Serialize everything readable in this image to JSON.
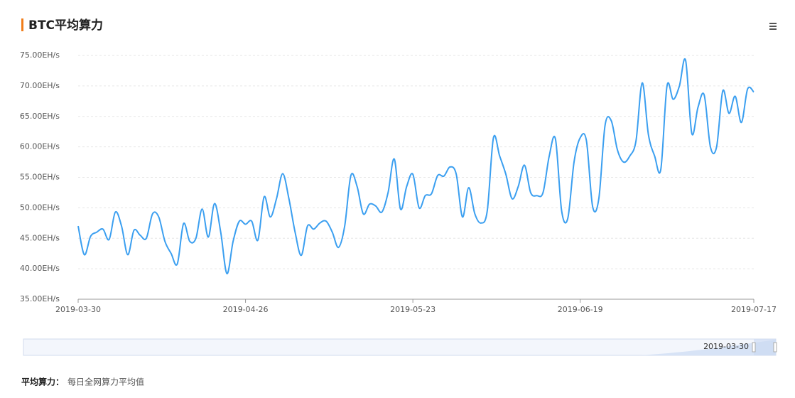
{
  "chart_data": {
    "type": "line",
    "title": "BTC平均算力",
    "categories": [
      "2019-03-30",
      null,
      null,
      null,
      null,
      null,
      null,
      null,
      null,
      null,
      null,
      null,
      null,
      null,
      null,
      null,
      null,
      null,
      null,
      null,
      null,
      null,
      null,
      null,
      null,
      null,
      null,
      "2019-04-26",
      null,
      null,
      null,
      null,
      null,
      null,
      null,
      null,
      null,
      null,
      null,
      null,
      null,
      null,
      null,
      null,
      null,
      null,
      null,
      null,
      null,
      null,
      null,
      null,
      null,
      null,
      "2019-05-23",
      null,
      null,
      null,
      null,
      null,
      null,
      null,
      null,
      null,
      null,
      null,
      null,
      null,
      null,
      null,
      null,
      null,
      null,
      null,
      null,
      null,
      null,
      null,
      null,
      null,
      null,
      "2019-06-19",
      null,
      null,
      null,
      null,
      null,
      null,
      null,
      null,
      null,
      null,
      null,
      null,
      null,
      null,
      null,
      null,
      null,
      null,
      null,
      null,
      null,
      null,
      null,
      null,
      null,
      null,
      null,
      "2019-07-17"
    ],
    "series": [
      {
        "name": "BTC平均算力",
        "color": "#3b9ff0",
        "values": [
          47,
          42.3,
          45.3,
          46,
          46.5,
          44.8,
          49.3,
          47,
          42.3,
          46.3,
          45.5,
          45,
          49,
          48.5,
          44.5,
          42.5,
          40.8,
          47.4,
          44.5,
          45,
          49.8,
          45.2,
          50.7,
          46,
          39.2,
          44.5,
          47.8,
          47.3,
          47.8,
          44.7,
          51.8,
          48.5,
          51.5,
          55.6,
          51.5,
          46,
          42.2,
          47,
          46.5,
          47.5,
          47.8,
          46,
          43.5,
          47,
          55.3,
          53.5,
          49,
          50.6,
          50.3,
          49.3,
          52.5,
          58,
          49.8,
          53.5,
          55.5,
          50,
          52,
          52.3,
          55.3,
          55.2,
          56.7,
          55.5,
          48.5,
          53.3,
          49,
          47.5,
          49.5,
          61.5,
          58.5,
          55.5,
          51.5,
          53.5,
          57,
          52.5,
          52,
          52.5,
          58.5,
          61.3,
          49.5,
          48.3,
          57.5,
          61.5,
          61,
          50.2,
          51.5,
          63.5,
          64.3,
          59.5,
          57.5,
          58.5,
          61,
          70.5,
          62,
          58.5,
          56.3,
          70,
          67.8,
          70,
          74.2,
          62.2,
          66.5,
          68.5,
          60,
          60,
          69.2,
          65.5,
          68.3,
          64,
          69.5,
          69
        ]
      }
    ],
    "ylim": [
      35,
      75
    ],
    "yticks": [
      {
        "value": 35,
        "label": "35.00EH/s"
      },
      {
        "value": 40,
        "label": "40.00EH/s"
      },
      {
        "value": 45,
        "label": "45.00EH/s"
      },
      {
        "value": 50,
        "label": "50.00EH/s"
      },
      {
        "value": 55,
        "label": "55.00EH/s"
      },
      {
        "value": 60,
        "label": "60.00EH/s"
      },
      {
        "value": 65,
        "label": "65.00EH/s"
      },
      {
        "value": 70,
        "label": "70.00EH/s"
      },
      {
        "value": 75,
        "label": "75.00EH/s"
      }
    ],
    "grid": true,
    "smooth": true,
    "datazoom": {
      "start_label": "2019-03-30"
    }
  },
  "note": {
    "term": "平均算力：",
    "text": "每日全网算力平均值"
  }
}
